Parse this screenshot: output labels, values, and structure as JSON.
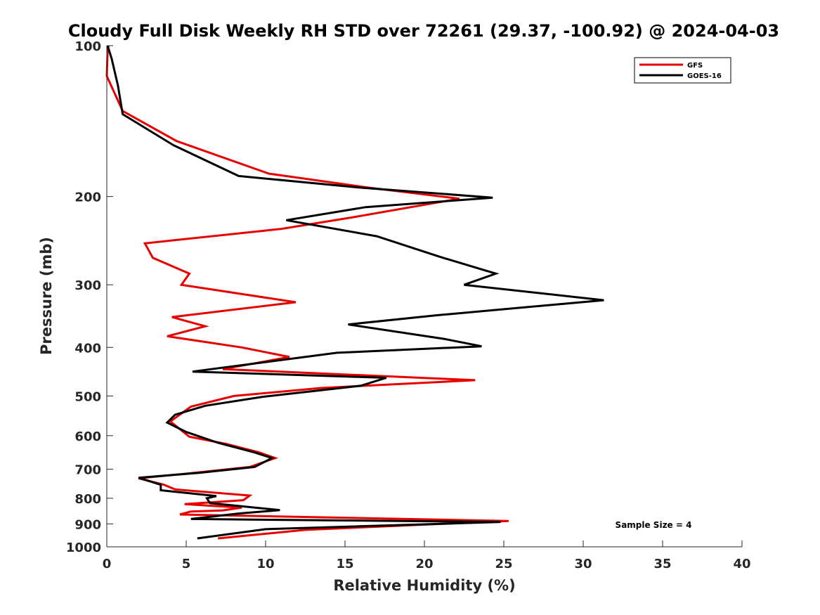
{
  "chart_data": {
    "type": "line",
    "title": "Cloudy Full Disk Weekly RH STD over 72261 (29.37, -100.92) @ 2024-04-03",
    "xlabel": "Relative Humidity (%)",
    "ylabel": "Pressure (mb)",
    "xlim": [
      0,
      40
    ],
    "ylim": [
      1000,
      100
    ],
    "yscale": "log",
    "y_reversed": true,
    "grid": false,
    "xticks": [
      0,
      5,
      10,
      15,
      20,
      25,
      30,
      35,
      40
    ],
    "yticks": [
      100,
      200,
      300,
      400,
      500,
      600,
      700,
      800,
      900,
      1000
    ],
    "legend_position": "top-right",
    "annotation": "Sample Size = 4",
    "series": [
      {
        "name": "GFS",
        "color": "#e60000",
        "points": [
          [
            0.1,
            100
          ],
          [
            0.05,
            103
          ],
          [
            0.0,
            115
          ],
          [
            1.0,
            135
          ],
          [
            4.4,
            155
          ],
          [
            10.2,
            180
          ],
          [
            16.5,
            192
          ],
          [
            22.2,
            202
          ],
          [
            15.5,
            220
          ],
          [
            11.0,
            232
          ],
          [
            2.4,
            248
          ],
          [
            2.9,
            265
          ],
          [
            5.2,
            285
          ],
          [
            4.7,
            300
          ],
          [
            11.9,
            325
          ],
          [
            4.1,
            348
          ],
          [
            6.2,
            363
          ],
          [
            3.8,
            380
          ],
          [
            8.5,
            400
          ],
          [
            11.5,
            418
          ],
          [
            7.3,
            442
          ],
          [
            23.2,
            465
          ],
          [
            13.5,
            482
          ],
          [
            8.0,
            500
          ],
          [
            5.3,
            525
          ],
          [
            4.0,
            562
          ],
          [
            5.2,
            603
          ],
          [
            7.5,
            623
          ],
          [
            9.6,
            648
          ],
          [
            10.6,
            665
          ],
          [
            9.0,
            693
          ],
          [
            5.5,
            712
          ],
          [
            2.0,
            730
          ],
          [
            3.6,
            752
          ],
          [
            4.3,
            768
          ],
          [
            9.0,
            790
          ],
          [
            8.6,
            807
          ],
          [
            4.9,
            822
          ],
          [
            8.5,
            835
          ],
          [
            7.3,
            846
          ],
          [
            5.3,
            850
          ],
          [
            4.6,
            862
          ],
          [
            25.3,
            888
          ],
          [
            12.5,
            925
          ],
          [
            7.0,
            962
          ]
        ]
      },
      {
        "name": "GOES-16",
        "color": "#000000",
        "points": [
          [
            0.05,
            100
          ],
          [
            0.3,
            106
          ],
          [
            0.7,
            120
          ],
          [
            1.0,
            137
          ],
          [
            4.2,
            158
          ],
          [
            8.3,
            182
          ],
          [
            16.0,
            192
          ],
          [
            24.3,
            201
          ],
          [
            16.3,
            210
          ],
          [
            11.3,
            223
          ],
          [
            17.0,
            240
          ],
          [
            21.0,
            264
          ],
          [
            24.5,
            285
          ],
          [
            22.5,
            300
          ],
          [
            31.3,
            322
          ],
          [
            20.8,
            345
          ],
          [
            15.2,
            360
          ],
          [
            21.3,
            385
          ],
          [
            23.6,
            398
          ],
          [
            14.5,
            410
          ],
          [
            5.4,
            447
          ],
          [
            17.6,
            460
          ],
          [
            16.0,
            477
          ],
          [
            9.8,
            502
          ],
          [
            6.2,
            523
          ],
          [
            4.3,
            545
          ],
          [
            3.8,
            565
          ],
          [
            5.0,
            590
          ],
          [
            7.0,
            620
          ],
          [
            9.3,
            648
          ],
          [
            10.4,
            665
          ],
          [
            9.3,
            693
          ],
          [
            5.8,
            712
          ],
          [
            2.0,
            728
          ],
          [
            3.4,
            752
          ],
          [
            3.4,
            771
          ],
          [
            6.9,
            792
          ],
          [
            6.3,
            800
          ],
          [
            6.5,
            818
          ],
          [
            10.9,
            845
          ],
          [
            8.3,
            858
          ],
          [
            5.3,
            880
          ],
          [
            24.8,
            892
          ],
          [
            10.0,
            922
          ],
          [
            5.7,
            962
          ]
        ]
      }
    ]
  }
}
